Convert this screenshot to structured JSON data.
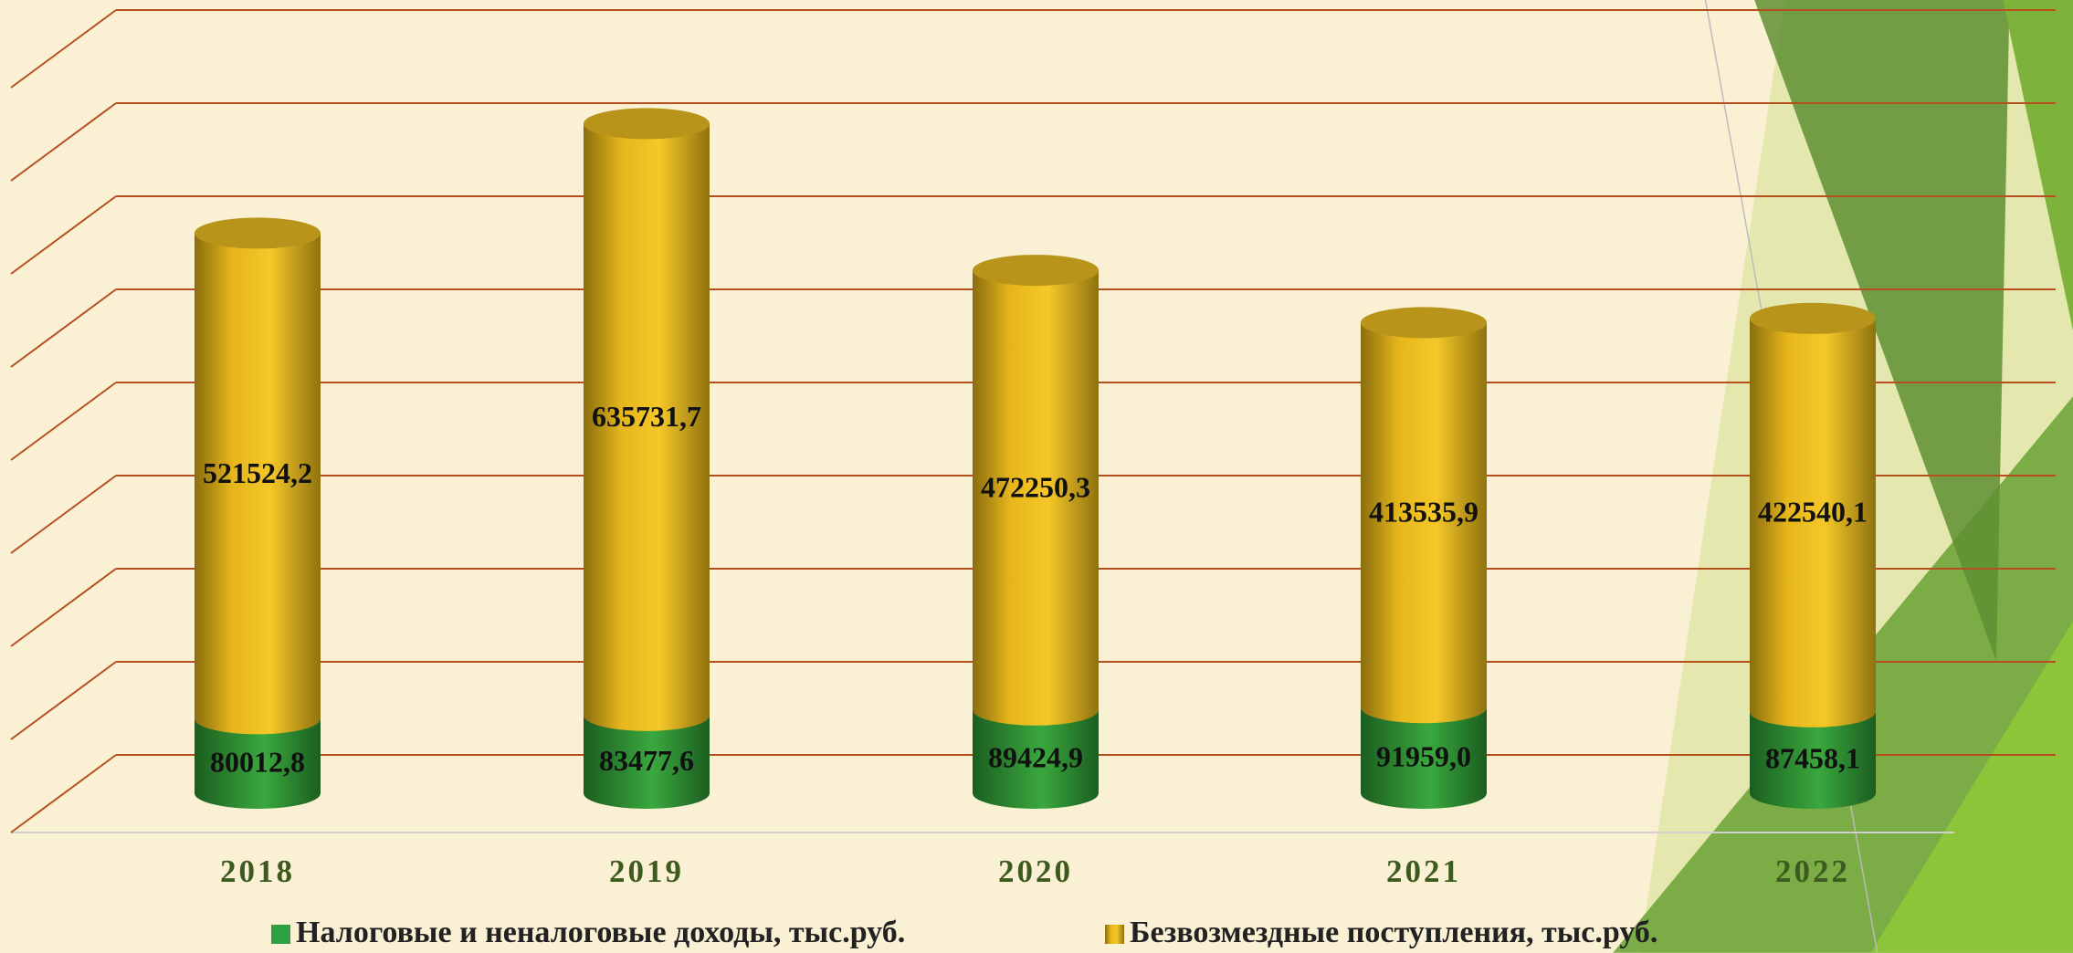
{
  "chart_data": {
    "type": "bar3d_stacked",
    "categories": [
      "2018",
      "2019",
      "2020",
      "2021",
      "2022"
    ],
    "series": [
      {
        "name": "Налоговые и неналоговые доходы, тыс.руб.",
        "color": "#2ea043",
        "values": [
          80012.8,
          83477.6,
          89424.9,
          91959.0,
          87458.1
        ],
        "value_labels": [
          "80012,8",
          "83477,6",
          "89424,9",
          "91959,0",
          "87458,1"
        ]
      },
      {
        "name": "Безвозмездные поступления, тыс.руб.",
        "color": "#f2c21e",
        "values": [
          521524.2,
          635731.7,
          472250.3,
          413535.9,
          422540.1
        ],
        "value_labels": [
          "521524,2",
          "635731,7",
          "472250,3",
          "413535,9",
          "422540,1"
        ]
      }
    ],
    "ylim": [
      0,
      800000
    ],
    "yticks": [
      0,
      100000,
      200000,
      300000,
      400000,
      500000,
      600000,
      700000,
      800000
    ],
    "grid": true,
    "grid_color": "#b5501e",
    "show_tick_labels": false,
    "legend": "bottom"
  }
}
